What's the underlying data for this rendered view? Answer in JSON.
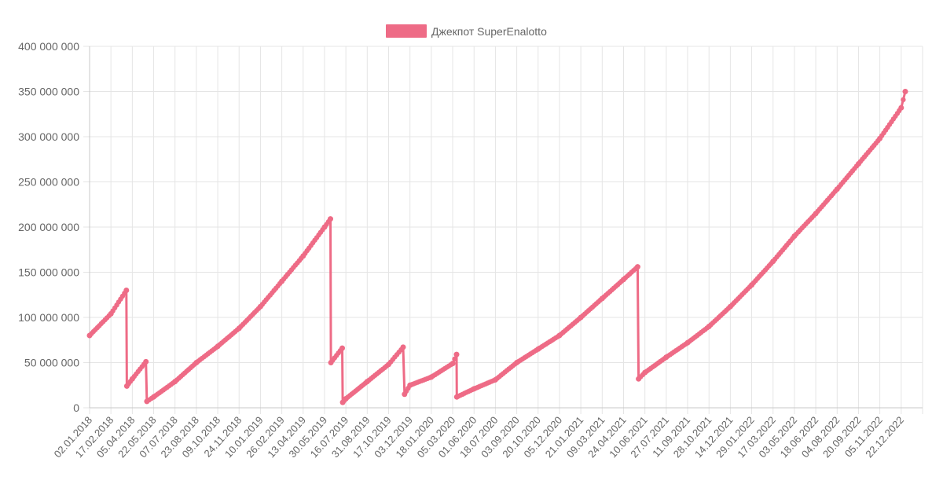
{
  "chart_data": {
    "type": "line",
    "title": "",
    "xlabel": "",
    "ylabel": "",
    "ylim": [
      0,
      400000000
    ],
    "y_ticks": [
      {
        "value": 0,
        "label": "0"
      },
      {
        "value": 50000000,
        "label": "50 000 000"
      },
      {
        "value": 100000000,
        "label": "100 000 000"
      },
      {
        "value": 150000000,
        "label": "150 000 000"
      },
      {
        "value": 200000000,
        "label": "200 000 000"
      },
      {
        "value": 250000000,
        "label": "250 000 000"
      },
      {
        "value": 300000000,
        "label": "300 000 000"
      },
      {
        "value": 350000000,
        "label": "350 000 000"
      },
      {
        "value": 400000000,
        "label": "400 000 000"
      }
    ],
    "x_tick_labels": [
      "02.01.2018",
      "17.02.2018",
      "05.04.2018",
      "22.05.2018",
      "07.07.2018",
      "23.08.2018",
      "09.10.2018",
      "24.11.2018",
      "10.01.2019",
      "26.02.2019",
      "13.04.2019",
      "30.05.2019",
      "16.07.2019",
      "31.08.2019",
      "17.10.2019",
      "03.12.2019",
      "18.01.2020",
      "05.03.2020",
      "01.06.2020",
      "18.07.2020",
      "03.09.2020",
      "20.10.2020",
      "05.12.2020",
      "21.01.2021",
      "09.03.2021",
      "24.04.2021",
      "10.06.2021",
      "27.07.2021",
      "11.09.2021",
      "28.10.2021",
      "14.12.2021",
      "29.01.2022",
      "17.03.2022",
      "03.05.2022",
      "18.06.2022",
      "04.08.2022",
      "20.09.2022",
      "05.11.2022",
      "22.12.2022"
    ],
    "grid": true,
    "legend_position": "top",
    "colors": {
      "series": "#ee6b86",
      "grid": "#e5e5e5",
      "axis": "#c8c8c8",
      "text": "#666666"
    },
    "series": [
      {
        "name": "Джекпот SuperEnalotto",
        "points": [
          [
            "02.01.2018",
            80000000
          ],
          [
            "17.02.2018",
            104000000
          ],
          [
            "23.03.2018",
            130000000
          ],
          [
            "24.03.2018",
            24000000
          ],
          [
            "05.04.2018",
            32000000
          ],
          [
            "05.05.2018",
            51000000
          ],
          [
            "07.05.2018",
            7000000
          ],
          [
            "22.05.2018",
            12000000
          ],
          [
            "07.07.2018",
            29000000
          ],
          [
            "23.08.2018",
            50000000
          ],
          [
            "09.10.2018",
            68000000
          ],
          [
            "24.11.2018",
            88000000
          ],
          [
            "10.01.2019",
            112000000
          ],
          [
            "26.02.2019",
            140000000
          ],
          [
            "13.04.2019",
            168000000
          ],
          [
            "30.05.2019",
            200000000
          ],
          [
            "12.06.2019",
            209000000
          ],
          [
            "13.06.2019",
            50000000
          ],
          [
            "08.07.2019",
            66000000
          ],
          [
            "09.07.2019",
            6000000
          ],
          [
            "16.07.2019",
            10000000
          ],
          [
            "31.08.2019",
            29000000
          ],
          [
            "17.10.2019",
            48000000
          ],
          [
            "18.11.2019",
            67000000
          ],
          [
            "21.11.2019",
            15000000
          ],
          [
            "03.12.2019",
            25000000
          ],
          [
            "18.01.2020",
            34000000
          ],
          [
            "05.03.2020",
            49000000
          ],
          [
            "21.03.2020",
            59000000
          ],
          [
            "22.03.2020",
            12000000
          ],
          [
            "01.06.2020",
            21000000
          ],
          [
            "18.07.2020",
            31000000
          ],
          [
            "03.09.2020",
            50000000
          ],
          [
            "20.10.2020",
            65000000
          ],
          [
            "05.12.2020",
            80000000
          ],
          [
            "21.01.2021",
            100000000
          ],
          [
            "09.03.2021",
            121000000
          ],
          [
            "24.04.2021",
            142000000
          ],
          [
            "25.05.2021",
            156000000
          ],
          [
            "27.05.2021",
            32000000
          ],
          [
            "10.06.2021",
            39000000
          ],
          [
            "27.07.2021",
            56000000
          ],
          [
            "11.09.2021",
            72000000
          ],
          [
            "28.10.2021",
            90000000
          ],
          [
            "14.12.2021",
            112000000
          ],
          [
            "29.01.2022",
            136000000
          ],
          [
            "17.03.2022",
            162000000
          ],
          [
            "03.05.2022",
            190000000
          ],
          [
            "18.06.2022",
            215000000
          ],
          [
            "04.08.2022",
            242000000
          ],
          [
            "20.09.2022",
            270000000
          ],
          [
            "05.11.2022",
            298000000
          ],
          [
            "22.12.2022",
            332000000
          ],
          [
            "31.12.2022",
            350000000
          ]
        ]
      }
    ]
  }
}
